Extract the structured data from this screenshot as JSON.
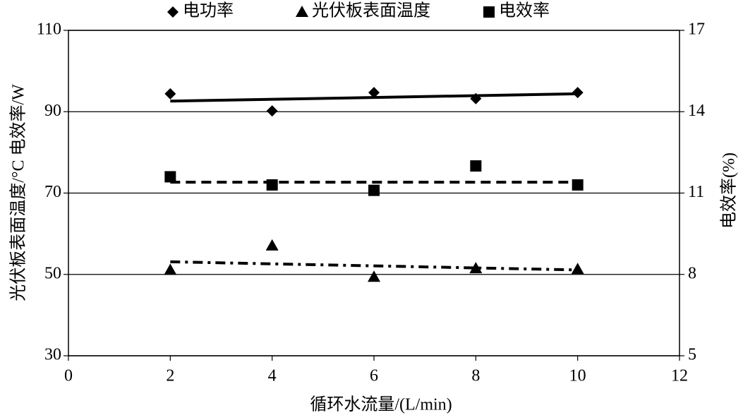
{
  "chart_data": {
    "type": "scatter",
    "legend_position": "top",
    "grid": true,
    "x_label": "循环水流量/(L/min)",
    "y_label": "光伏板表面温度/°C   电效率/W",
    "y2_label": "电效率(%)",
    "x": [
      2,
      4,
      6,
      8,
      10
    ],
    "xlim": [
      0,
      12
    ],
    "xticks": [
      0,
      2,
      4,
      6,
      8,
      10,
      12
    ],
    "ylim": [
      30,
      110
    ],
    "yticks": [
      30,
      50,
      70,
      90,
      110
    ],
    "y2lim": [
      5,
      17
    ],
    "y2ticks": [
      5,
      8,
      11,
      14,
      17
    ],
    "series": [
      {
        "name": "电功率",
        "color": "#000000",
        "marker": "diamond",
        "line_style": "solid",
        "values": [
          94.4,
          90.2,
          94.7,
          93.2,
          94.7
        ],
        "trend": [
          92.6,
          94.4
        ]
      },
      {
        "name": "光伏板表面温度",
        "color": "#000000",
        "marker": "triangle",
        "line_style": "dashdot",
        "values": [
          51.1,
          57.1,
          49.4,
          51.5,
          51.3
        ],
        "trend": [
          53.1,
          51.1
        ]
      },
      {
        "name": "电效率",
        "color": "#000000",
        "marker": "square",
        "line_style": "dashed",
        "axis": "y2",
        "values": [
          11.6,
          11.3,
          11.1,
          12.0,
          11.3
        ],
        "trend": [
          11.4,
          11.4
        ]
      }
    ]
  }
}
